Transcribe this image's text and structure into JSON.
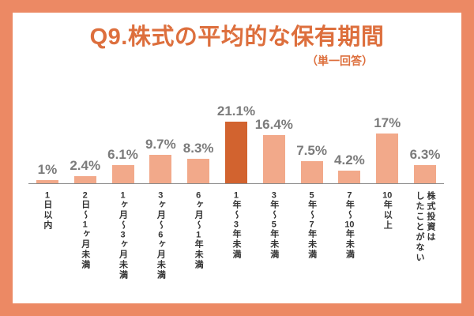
{
  "frame": {
    "border_color": "#ec8964",
    "background_color": "#ffffff"
  },
  "chart_data": {
    "type": "bar",
    "title": "Q9.株式の平均的な保有期間",
    "subtitle": "（単一回答）",
    "categories": [
      "1日以内",
      "2日～1ヶ月未満",
      "1ヶ月～3ヶ月未満",
      "3ヶ月～6ヶ月未満",
      "6ヶ月～1年未満",
      "1年～3年未満",
      "3年～5年未満",
      "5年～7年未満",
      "7年～10年未満",
      "10年以上",
      "株式投資は\nしたことがない"
    ],
    "values": [
      1,
      2.4,
      6.1,
      9.7,
      8.3,
      21.1,
      16.4,
      7.5,
      4.2,
      17,
      6.3
    ],
    "value_labels": [
      "1%",
      "2.4%",
      "6.1%",
      "9.7%",
      "8.3%",
      "21.1%",
      "16.4%",
      "7.5%",
      "4.2%",
      "17%",
      "6.3%"
    ],
    "highlight_index": 5,
    "xlabel": "",
    "ylabel": "",
    "ylim": [
      0,
      22
    ],
    "grid": false,
    "legend": false,
    "bar_color": "#f2a98a",
    "highlight_color": "#d2632f",
    "value_label_color": "#7b7b7b",
    "axis_color": "#8a8a8a",
    "category_label_color": "#333333",
    "title_color": "#dd6f3d"
  }
}
